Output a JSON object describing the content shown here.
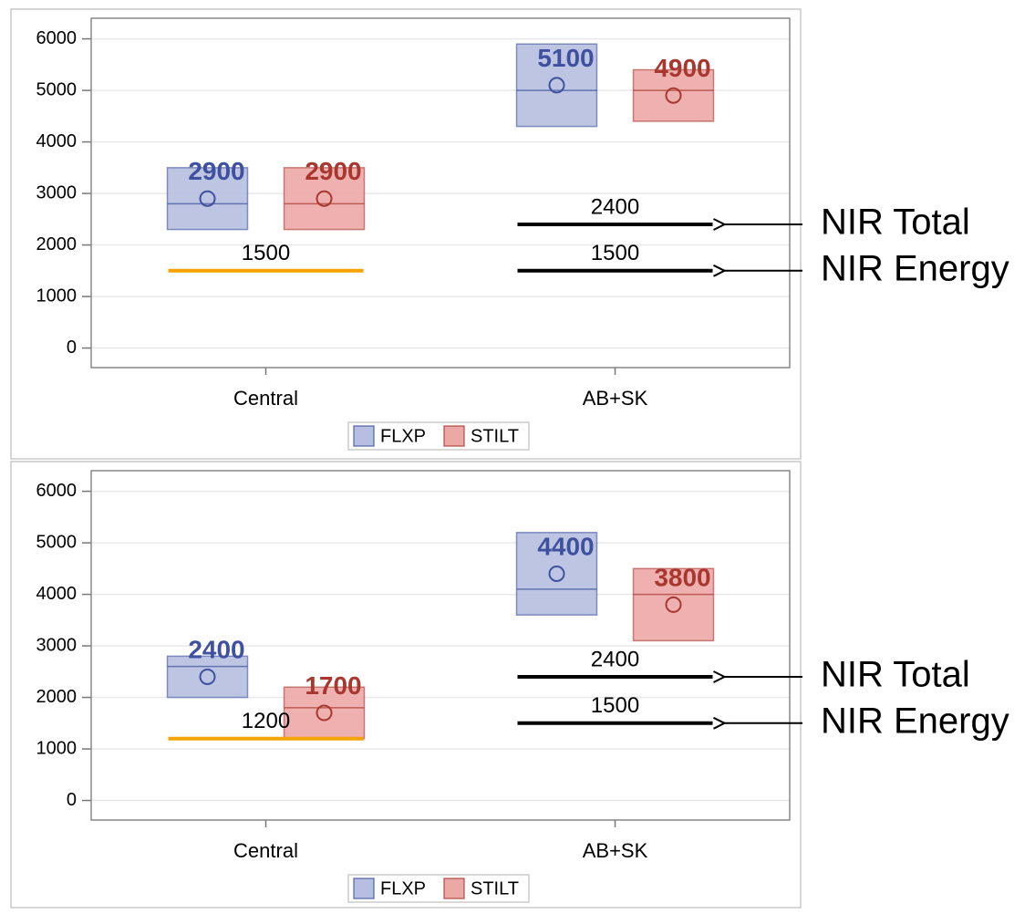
{
  "chart_data": [
    {
      "type": "box",
      "categories": [
        "Central",
        "AB+SK"
      ],
      "series": [
        {
          "name": "FLXP",
          "color": "#3f519e",
          "fill": "#b6bfdf",
          "values": [
            {
              "low": 2300,
              "high": 3500,
              "median": 2800,
              "mean": 2900
            },
            {
              "low": 4300,
              "high": 5900,
              "median": 5000,
              "mean": 5100
            }
          ]
        },
        {
          "name": "STILT",
          "color": "#a8382f",
          "fill": "#eca8a6",
          "values": [
            {
              "low": 2300,
              "high": 3500,
              "median": 2800,
              "mean": 2900
            },
            {
              "low": 4400,
              "high": 5400,
              "median": 5000,
              "mean": 4900
            }
          ]
        }
      ],
      "reference_lines": [
        {
          "category": "Central",
          "value": 1500,
          "color": "#f5a300"
        },
        {
          "category": "AB+SK",
          "value": 2400,
          "color": "#000000",
          "annotation": "NIR Total"
        },
        {
          "category": "AB+SK",
          "value": 1500,
          "color": "#000000",
          "annotation": "NIR Energy"
        }
      ],
      "ylim": [
        -380,
        6400
      ],
      "yticks": [
        0,
        1000,
        2000,
        3000,
        4000,
        5000,
        6000
      ],
      "grid": true,
      "legend": "bottom"
    },
    {
      "type": "box",
      "categories": [
        "Central",
        "AB+SK"
      ],
      "series": [
        {
          "name": "FLXP",
          "color": "#3f519e",
          "fill": "#b6bfdf",
          "values": [
            {
              "low": 2000,
              "high": 2800,
              "median": 2600,
              "mean": 2400
            },
            {
              "low": 3600,
              "high": 5200,
              "median": 4100,
              "mean": 4400
            }
          ]
        },
        {
          "name": "STILT",
          "color": "#a8382f",
          "fill": "#eca8a6",
          "values": [
            {
              "low": 1200,
              "high": 2200,
              "median": 1800,
              "mean": 1700
            },
            {
              "low": 3100,
              "high": 4500,
              "median": 4000,
              "mean": 3800
            }
          ]
        }
      ],
      "reference_lines": [
        {
          "category": "Central",
          "value": 1200,
          "color": "#f5a300"
        },
        {
          "category": "AB+SK",
          "value": 2400,
          "color": "#000000",
          "annotation": "NIR Total"
        },
        {
          "category": "AB+SK",
          "value": 1500,
          "color": "#000000",
          "annotation": "NIR Energy"
        }
      ],
      "ylim": [
        -380,
        6400
      ],
      "yticks": [
        0,
        1000,
        2000,
        3000,
        4000,
        5000,
        6000
      ],
      "grid": true,
      "legend": "bottom"
    }
  ]
}
